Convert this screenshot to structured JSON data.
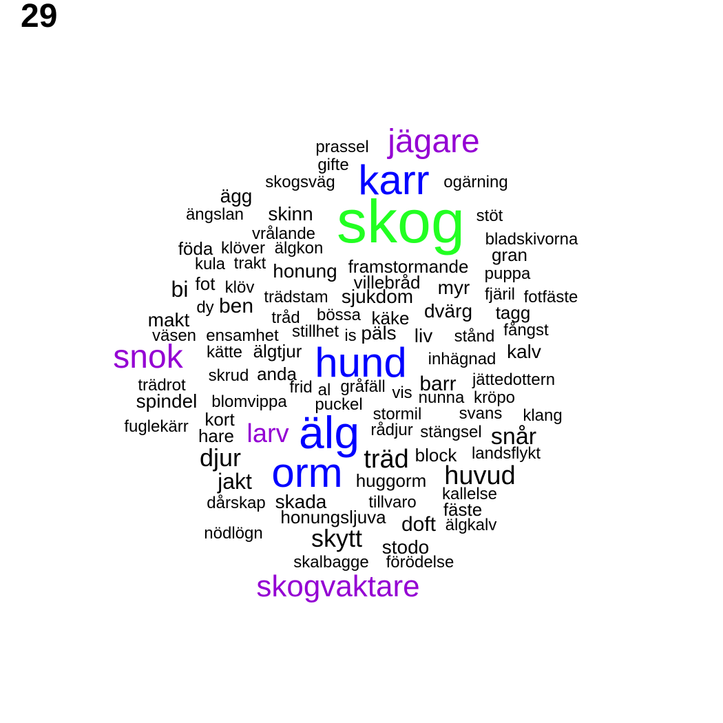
{
  "page_number": "29",
  "colors": {
    "green": "#22ff22",
    "blue": "#0000ff",
    "purple": "#9400d3",
    "black": "#000000"
  },
  "words": [
    {
      "text": "skog",
      "color": "green"
    },
    {
      "text": "karr",
      "color": "blue"
    },
    {
      "text": "hund",
      "color": "blue"
    },
    {
      "text": "älg",
      "color": "blue"
    },
    {
      "text": "orm",
      "color": "blue"
    },
    {
      "text": "jägare",
      "color": "purple"
    },
    {
      "text": "snok",
      "color": "purple"
    },
    {
      "text": "larv",
      "color": "purple"
    },
    {
      "text": "skogvaktare",
      "color": "purple"
    },
    {
      "text": "prassel",
      "color": "black"
    },
    {
      "text": "gifte",
      "color": "black"
    },
    {
      "text": "skogsväg",
      "color": "black"
    },
    {
      "text": "ogärning",
      "color": "black"
    },
    {
      "text": "ägg",
      "color": "black"
    },
    {
      "text": "ängslan",
      "color": "black"
    },
    {
      "text": "skinn",
      "color": "black"
    },
    {
      "text": "stöt",
      "color": "black"
    },
    {
      "text": "vrålande",
      "color": "black"
    },
    {
      "text": "bladskivorna",
      "color": "black"
    },
    {
      "text": "föda",
      "color": "black"
    },
    {
      "text": "klöver",
      "color": "black"
    },
    {
      "text": "älgkon",
      "color": "black"
    },
    {
      "text": "gran",
      "color": "black"
    },
    {
      "text": "kula",
      "color": "black"
    },
    {
      "text": "trakt",
      "color": "black"
    },
    {
      "text": "honung",
      "color": "black"
    },
    {
      "text": "framstormande",
      "color": "black"
    },
    {
      "text": "puppa",
      "color": "black"
    },
    {
      "text": "bi",
      "color": "black"
    },
    {
      "text": "fot",
      "color": "black"
    },
    {
      "text": "klöv",
      "color": "black"
    },
    {
      "text": "villebråd",
      "color": "black"
    },
    {
      "text": "myr",
      "color": "black"
    },
    {
      "text": "fjäril",
      "color": "black"
    },
    {
      "text": "fotfäste",
      "color": "black"
    },
    {
      "text": "trädstam",
      "color": "black"
    },
    {
      "text": "sjukdom",
      "color": "black"
    },
    {
      "text": "dy",
      "color": "black"
    },
    {
      "text": "ben",
      "color": "black"
    },
    {
      "text": "dvärg",
      "color": "black"
    },
    {
      "text": "tagg",
      "color": "black"
    },
    {
      "text": "makt",
      "color": "black"
    },
    {
      "text": "tråd",
      "color": "black"
    },
    {
      "text": "bössa",
      "color": "black"
    },
    {
      "text": "käke",
      "color": "black"
    },
    {
      "text": "väsen",
      "color": "black"
    },
    {
      "text": "ensamhet",
      "color": "black"
    },
    {
      "text": "stillhet",
      "color": "black"
    },
    {
      "text": "is",
      "color": "black"
    },
    {
      "text": "päls",
      "color": "black"
    },
    {
      "text": "liv",
      "color": "black"
    },
    {
      "text": "stånd",
      "color": "black"
    },
    {
      "text": "fångst",
      "color": "black"
    },
    {
      "text": "kätte",
      "color": "black"
    },
    {
      "text": "älgtjur",
      "color": "black"
    },
    {
      "text": "inhägnad",
      "color": "black"
    },
    {
      "text": "kalv",
      "color": "black"
    },
    {
      "text": "skrud",
      "color": "black"
    },
    {
      "text": "anda",
      "color": "black"
    },
    {
      "text": "trädrot",
      "color": "black"
    },
    {
      "text": "frid",
      "color": "black"
    },
    {
      "text": "al",
      "color": "black"
    },
    {
      "text": "gråfäll",
      "color": "black"
    },
    {
      "text": "barr",
      "color": "black"
    },
    {
      "text": "jättedottern",
      "color": "black"
    },
    {
      "text": "vis",
      "color": "black"
    },
    {
      "text": "spindel",
      "color": "black"
    },
    {
      "text": "blomvippa",
      "color": "black"
    },
    {
      "text": "nunna",
      "color": "black"
    },
    {
      "text": "kröpo",
      "color": "black"
    },
    {
      "text": "puckel",
      "color": "black"
    },
    {
      "text": "stormil",
      "color": "black"
    },
    {
      "text": "svans",
      "color": "black"
    },
    {
      "text": "klang",
      "color": "black"
    },
    {
      "text": "kort",
      "color": "black"
    },
    {
      "text": "fuglekärr",
      "color": "black"
    },
    {
      "text": "rådjur",
      "color": "black"
    },
    {
      "text": "stängsel",
      "color": "black"
    },
    {
      "text": "hare",
      "color": "black"
    },
    {
      "text": "snår",
      "color": "black"
    },
    {
      "text": "djur",
      "color": "black"
    },
    {
      "text": "träd",
      "color": "black"
    },
    {
      "text": "block",
      "color": "black"
    },
    {
      "text": "landsflykt",
      "color": "black"
    },
    {
      "text": "huvud",
      "color": "black"
    },
    {
      "text": "jakt",
      "color": "black"
    },
    {
      "text": "huggorm",
      "color": "black"
    },
    {
      "text": "kallelse",
      "color": "black"
    },
    {
      "text": "dårskap",
      "color": "black"
    },
    {
      "text": "skada",
      "color": "black"
    },
    {
      "text": "tillvaro",
      "color": "black"
    },
    {
      "text": "fäste",
      "color": "black"
    },
    {
      "text": "honungsljuva",
      "color": "black"
    },
    {
      "text": "doft",
      "color": "black"
    },
    {
      "text": "älgkalv",
      "color": "black"
    },
    {
      "text": "nödlögn",
      "color": "black"
    },
    {
      "text": "skytt",
      "color": "black"
    },
    {
      "text": "stodo",
      "color": "black"
    },
    {
      "text": "skalbagge",
      "color": "black"
    },
    {
      "text": "förödelse",
      "color": "black"
    }
  ]
}
